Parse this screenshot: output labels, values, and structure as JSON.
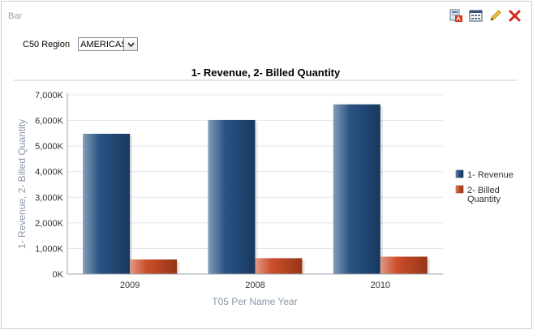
{
  "panel": {
    "title": "Bar"
  },
  "toolbar": {
    "icons": [
      "export-pdf-icon",
      "print-icon",
      "edit-icon",
      "delete-icon"
    ]
  },
  "prompt": {
    "label": "C50 Region",
    "value": "AMERICAS"
  },
  "chart_data": {
    "type": "bar",
    "title": "1- Revenue, 2- Billed Quantity",
    "xlabel": "T05 Per Name Year",
    "ylabel": "1- Revenue, 2- Billed Quantity",
    "categories": [
      "2009",
      "2008",
      "2010"
    ],
    "series": [
      {
        "name": "1- Revenue",
        "values": [
          5480000,
          6020000,
          6630000
        ],
        "color": "#1f4b7e"
      },
      {
        "name": "2- Billed Quantity",
        "values": [
          570000,
          620000,
          680000
        ],
        "color": "#c8461f"
      }
    ],
    "ylim": [
      0,
      7000000
    ],
    "yticks": [
      0,
      1000000,
      2000000,
      3000000,
      4000000,
      5000000,
      6000000,
      7000000
    ],
    "ytick_labels": [
      "0K",
      "1,000K",
      "2,000K",
      "3,000K",
      "4,000K",
      "5,000K",
      "6,000K",
      "7,000K"
    ],
    "grid": true,
    "legend": "right",
    "legend_labels": [
      [
        "1- Revenue"
      ],
      [
        "2- Billed",
        "Quantity"
      ]
    ]
  }
}
